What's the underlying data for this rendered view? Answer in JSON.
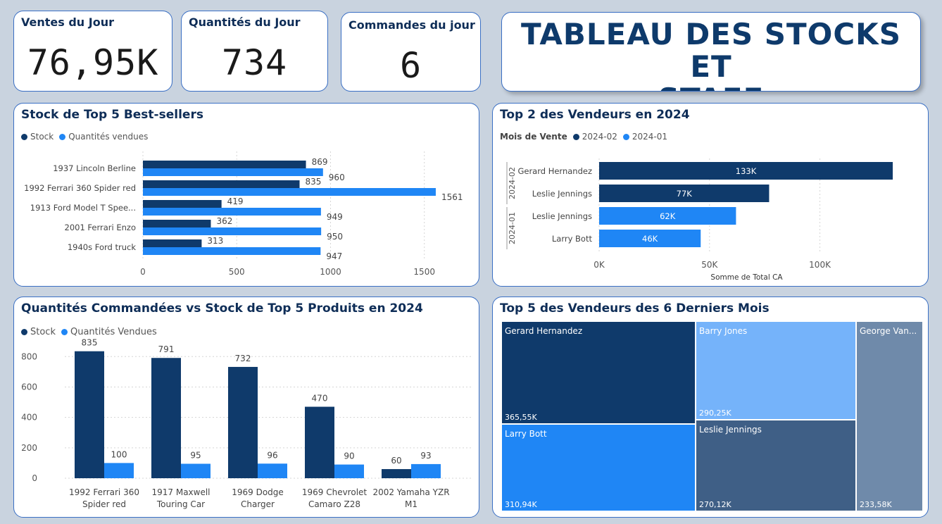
{
  "kpis": [
    {
      "title": "Ventes du Jour",
      "value": "76,95K"
    },
    {
      "title": "Quantités du Jour",
      "value": "734"
    },
    {
      "title": "Commandes du jour",
      "value": "6"
    }
  ],
  "main_title": {
    "line1": "TABLEAU DES STOCKS ET",
    "line2": "STAFF"
  },
  "colors": {
    "dark": "#0f3a6b",
    "light": "#1f86f5",
    "tm_light1": "#75b3fa",
    "tm_grey1": "#3f5f86",
    "tm_grey2": "#6f8aaa"
  },
  "chart_data": [
    {
      "type": "bar",
      "orientation": "horizontal",
      "title": "Stock de Top 5 Best-sellers",
      "categories": [
        "1937 Lincoln Berline",
        "1992 Ferrari 360 Spider red",
        "1913 Ford Model T Spee...",
        "2001 Ferrari Enzo",
        "1940s Ford truck"
      ],
      "series": [
        {
          "name": "Stock",
          "values": [
            869,
            835,
            419,
            362,
            313
          ]
        },
        {
          "name": "Quantités vendues",
          "values": [
            960,
            1561,
            949,
            950,
            947
          ]
        }
      ],
      "xticks": [
        0,
        500,
        1000,
        1500
      ],
      "xlim": [
        0,
        1700
      ],
      "legend": "top-left"
    },
    {
      "type": "bar",
      "orientation": "horizontal",
      "title": "Top 2 des Vendeurs en 2024",
      "legend_title": "Mois de Vente",
      "groups": [
        {
          "label": "2024-02",
          "rows": [
            {
              "name": "Gerard Hernandez",
              "value": 133,
              "label": "133K"
            },
            {
              "name": "Leslie Jennings",
              "value": 77,
              "label": "77K"
            }
          ]
        },
        {
          "label": "2024-01",
          "rows": [
            {
              "name": "Leslie Jennings",
              "value": 62,
              "label": "62K"
            },
            {
              "name": "Larry Bott",
              "value": 46,
              "label": "46K"
            }
          ]
        }
      ],
      "series_names": [
        "2024-02",
        "2024-01"
      ],
      "xticks": [
        "0K",
        "50K",
        "100K"
      ],
      "xtick_values": [
        0,
        50,
        100
      ],
      "xlim": [
        0,
        140
      ],
      "xlabel": "Somme de Total CA",
      "legend": "top-left"
    },
    {
      "type": "bar",
      "orientation": "vertical",
      "title": "Quantités Commandées vs Stock de Top 5 Produits en 2024",
      "categories": [
        [
          "1992 Ferrari 360",
          "Spider red"
        ],
        [
          "1917 Maxwell",
          "Touring Car"
        ],
        [
          "1969 Dodge",
          "Charger"
        ],
        [
          "1969 Chevrolet",
          "Camaro Z28"
        ],
        [
          "2002 Yamaha YZR",
          "M1"
        ]
      ],
      "series": [
        {
          "name": "Stock",
          "values": [
            835,
            791,
            732,
            470,
            60
          ]
        },
        {
          "name": "Quantités Vendues",
          "values": [
            100,
            95,
            96,
            90,
            93
          ]
        }
      ],
      "yticks": [
        0,
        200,
        400,
        600,
        800
      ],
      "ylim": [
        0,
        880
      ],
      "grid": true,
      "legend": "top-left"
    },
    {
      "type": "treemap",
      "title": "Top 5 des Vendeurs des 6 Derniers Mois",
      "items": [
        {
          "name": "Gerard Hernandez",
          "label": "365,55K",
          "value": 365.55
        },
        {
          "name": "Larry Bott",
          "label": "310,94K",
          "value": 310.94
        },
        {
          "name": "Barry Jones",
          "label": "290,25K",
          "value": 290.25
        },
        {
          "name": "Leslie Jennings",
          "label": "270,12K",
          "value": 270.12
        },
        {
          "name": "George Van...",
          "label": "233,58K",
          "value": 233.58
        }
      ]
    }
  ]
}
